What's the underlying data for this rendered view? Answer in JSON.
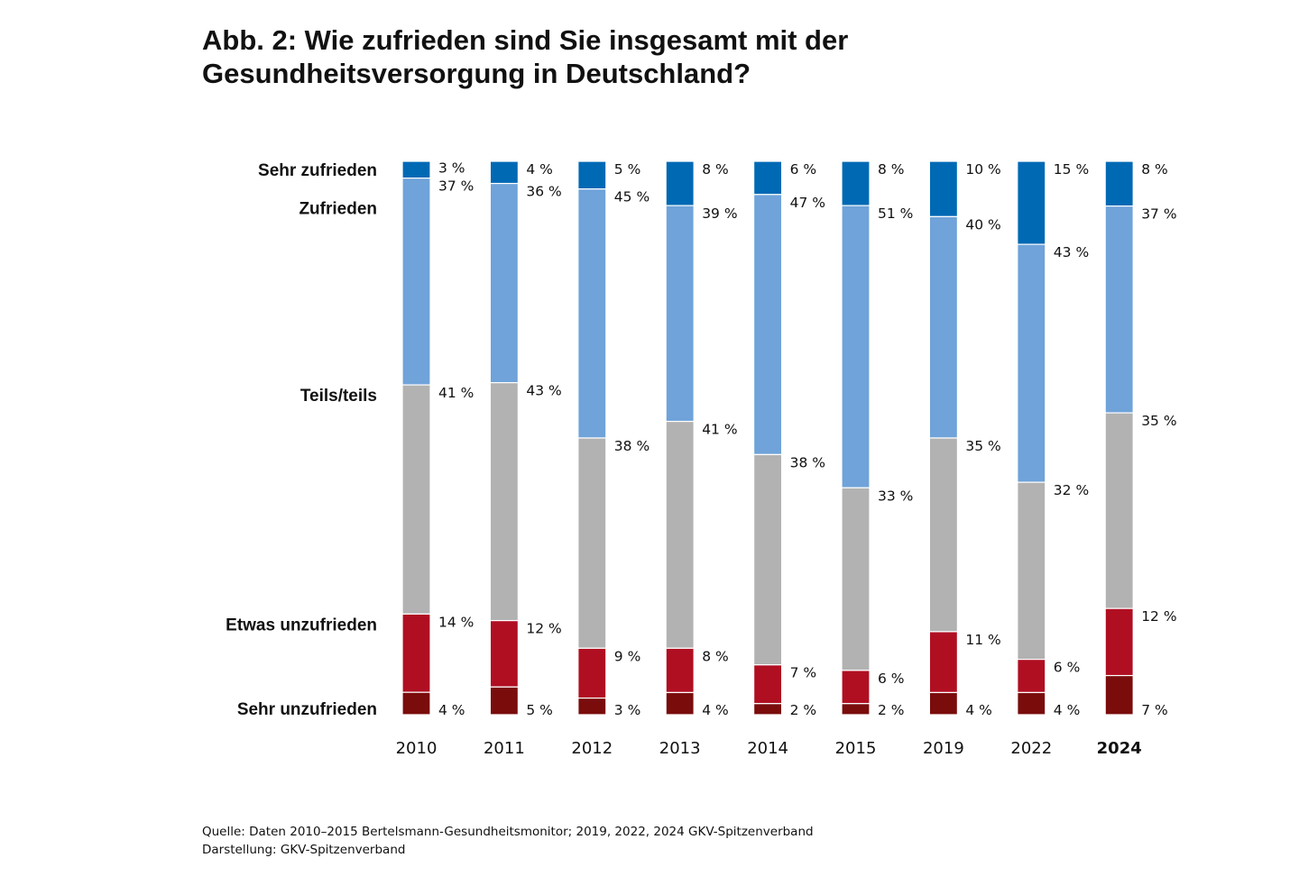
{
  "title_line1": "Abb. 2: Wie zufrieden sind Sie insgesamt mit der",
  "title_line2": "Gesundheitsversorgung in Deutschland?",
  "source_line1": "Quelle: Daten 2010–2015 Bertelsmann-Gesundheitsmonitor; 2019, 2022, 2024 GKV-Spitzenverband",
  "source_line2": "Darstellung: GKV-Spitzenverband",
  "chart_data": {
    "type": "bar",
    "stacked": true,
    "categories": [
      "2010",
      "2011",
      "2012",
      "2013",
      "2014",
      "2015",
      "2019",
      "2022",
      "2024"
    ],
    "highlight_category": "2024",
    "unit_suffix": " %",
    "series": [
      {
        "name": "Sehr zufrieden",
        "color": "#0069b4",
        "values": [
          3,
          4,
          5,
          8,
          6,
          8,
          10,
          15,
          8
        ]
      },
      {
        "name": "Zufrieden",
        "color": "#6fa3d9",
        "values": [
          37,
          36,
          45,
          39,
          47,
          51,
          40,
          43,
          37
        ]
      },
      {
        "name": "Teils/teils",
        "color": "#b2b2b2",
        "values": [
          41,
          43,
          38,
          41,
          38,
          33,
          35,
          32,
          35
        ]
      },
      {
        "name": "Etwas unzufrieden",
        "color": "#b00f22",
        "values": [
          14,
          12,
          9,
          8,
          7,
          6,
          11,
          6,
          12
        ]
      },
      {
        "name": "Sehr unzufrieden",
        "color": "#7a0c0c",
        "values": [
          4,
          5,
          3,
          4,
          2,
          2,
          4,
          4,
          7
        ]
      }
    ],
    "legend_placement": "left",
    "grid": false
  }
}
